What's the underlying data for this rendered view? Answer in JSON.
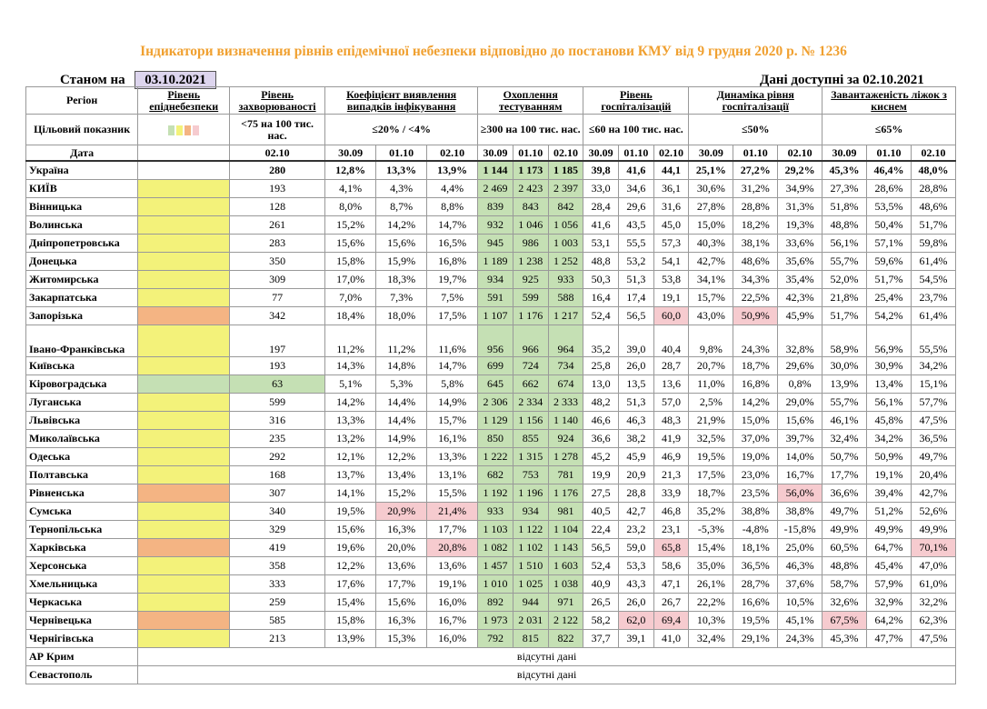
{
  "title": "Індикатори визначення рівнів епідемічної небезпеки відповідно до постанови КМУ від 9 грудня 2020 р. № 1236",
  "as_of_label": "Станом на",
  "as_of_date": "03.10.2021",
  "data_available": "Дані доступні за  02.10.2021",
  "headers": {
    "region": "Регіон",
    "danger_level": "Рівень епіднебезпеки",
    "morbidity": "Рівень захворюваності",
    "detection": "Коефіцієнт виявлення випадків інфікування",
    "testing": "Охоплення тестуванням",
    "hospitalization": "Рівень госпіталізацій",
    "dynamics": "Динаміка рівня госпіталізації",
    "beds": "Завантаженість ліжок з киснем"
  },
  "targets": {
    "label": "Цільовий показник",
    "morbidity": "<75 на 100 тис. нас.",
    "detection": "≤20% / <4%",
    "testing": "≥300 на 100 тис. нас.",
    "hospitalization": "≤60 на 100 тис. нас.",
    "dynamics": "≤50%",
    "beds": "≤65%"
  },
  "level_swatches": [
    "#c5e0b4",
    "#f3f27a",
    "#f4b483",
    "#f6cbcf"
  ],
  "date_row": {
    "label": "Дата",
    "morbidity": "02.10",
    "detection": [
      "30.09",
      "01.10",
      "02.10"
    ],
    "testing": [
      "30.09",
      "01.10",
      "02.10"
    ],
    "hospitalization": [
      "30.09",
      "01.10",
      "02.10"
    ],
    "dynamics": [
      "30.09",
      "01.10",
      "02.10"
    ],
    "beds": [
      "30.09",
      "01.10",
      "02.10"
    ]
  },
  "colors": {
    "green": "#c5e0b4",
    "yellow": "#f3f27a",
    "orange": "#f4b483",
    "red": "#f6cbcf",
    "title": "#f0a030",
    "date_box": "#ddd5ee"
  },
  "regions": [
    {
      "name": "Україна",
      "level": "none",
      "morbidity": "280",
      "detection": [
        "12,8%",
        "13,3%",
        "13,9%"
      ],
      "testing": [
        "1 144",
        "1 173",
        "1 185"
      ],
      "hospitalization": [
        "39,8",
        "41,6",
        "44,1"
      ],
      "dynamics": [
        "25,1%",
        "27,2%",
        "29,2%"
      ],
      "beds": [
        "45,3%",
        "46,4%",
        "48,0%"
      ]
    },
    {
      "name": "КИЇВ",
      "level": "yellow",
      "morbidity": "193",
      "detection": [
        "4,1%",
        "4,3%",
        "4,4%"
      ],
      "testing": [
        "2 469",
        "2 423",
        "2 397"
      ],
      "hospitalization": [
        "33,0",
        "34,6",
        "36,1"
      ],
      "dynamics": [
        "30,6%",
        "31,2%",
        "34,9%"
      ],
      "beds": [
        "27,3%",
        "28,6%",
        "28,8%"
      ]
    },
    {
      "name": "Вінницька",
      "level": "yellow",
      "morbidity": "128",
      "detection": [
        "8,0%",
        "8,7%",
        "8,8%"
      ],
      "testing": [
        "839",
        "843",
        "842"
      ],
      "hospitalization": [
        "28,4",
        "29,6",
        "31,6"
      ],
      "dynamics": [
        "27,8%",
        "28,8%",
        "31,3%"
      ],
      "beds": [
        "51,8%",
        "53,5%",
        "48,6%"
      ]
    },
    {
      "name": "Волинська",
      "level": "yellow",
      "morbidity": "261",
      "detection": [
        "15,2%",
        "14,2%",
        "14,7%"
      ],
      "testing": [
        "932",
        "1 046",
        "1 056"
      ],
      "hospitalization": [
        "41,6",
        "43,5",
        "45,0"
      ],
      "dynamics": [
        "15,0%",
        "18,2%",
        "19,3%"
      ],
      "beds": [
        "48,8%",
        "50,4%",
        "51,7%"
      ]
    },
    {
      "name": "Дніпропетровська",
      "level": "yellow",
      "morbidity": "283",
      "detection": [
        "15,6%",
        "15,6%",
        "16,5%"
      ],
      "testing": [
        "945",
        "986",
        "1 003"
      ],
      "hospitalization": [
        "53,1",
        "55,5",
        "57,3"
      ],
      "dynamics": [
        "40,3%",
        "38,1%",
        "33,6%"
      ],
      "beds": [
        "56,1%",
        "57,1%",
        "59,8%"
      ]
    },
    {
      "name": "Донецька",
      "level": "yellow",
      "morbidity": "350",
      "detection": [
        "15,8%",
        "15,9%",
        "16,8%"
      ],
      "testing": [
        "1 189",
        "1 238",
        "1 252"
      ],
      "hospitalization": [
        "48,8",
        "53,2",
        "54,1"
      ],
      "dynamics": [
        "42,7%",
        "48,6%",
        "35,6%"
      ],
      "beds": [
        "55,7%",
        "59,6%",
        "61,4%"
      ]
    },
    {
      "name": "Житомирська",
      "level": "yellow",
      "morbidity": "309",
      "detection": [
        "17,0%",
        "18,3%",
        "19,7%"
      ],
      "testing": [
        "934",
        "925",
        "933"
      ],
      "hospitalization": [
        "50,3",
        "51,3",
        "53,8"
      ],
      "dynamics": [
        "34,1%",
        "34,3%",
        "35,4%"
      ],
      "beds": [
        "52,0%",
        "51,7%",
        "54,5%"
      ]
    },
    {
      "name": "Закарпатська",
      "level": "yellow",
      "morbidity": "77",
      "detection": [
        "7,0%",
        "7,3%",
        "7,5%"
      ],
      "testing": [
        "591",
        "599",
        "588"
      ],
      "hospitalization": [
        "16,4",
        "17,4",
        "19,1"
      ],
      "dynamics": [
        "15,7%",
        "22,5%",
        "42,3%"
      ],
      "beds": [
        "21,8%",
        "25,4%",
        "23,7%"
      ]
    },
    {
      "name": "Запорізька",
      "level": "orange",
      "morbidity": "342",
      "detection": [
        "18,4%",
        "18,0%",
        "17,5%"
      ],
      "testing": [
        "1 107",
        "1 176",
        "1 217"
      ],
      "hospitalization": [
        "52,4",
        "56,5",
        "60,0"
      ],
      "dynamics": [
        "43,0%",
        "50,9%",
        "45,9%"
      ],
      "beds": [
        "51,7%",
        "54,2%",
        "61,4%"
      ]
    },
    {
      "name": "Івано-Франківська",
      "level": "yellow",
      "morbidity": "197",
      "detection": [
        "11,2%",
        "11,2%",
        "11,6%"
      ],
      "testing": [
        "956",
        "966",
        "964"
      ],
      "hospitalization": [
        "35,2",
        "39,0",
        "40,4"
      ],
      "dynamics": [
        "9,8%",
        "24,3%",
        "32,8%"
      ],
      "beds": [
        "58,9%",
        "56,9%",
        "55,5%"
      ]
    },
    {
      "name": "Київська",
      "level": "yellow",
      "morbidity": "193",
      "detection": [
        "14,3%",
        "14,8%",
        "14,7%"
      ],
      "testing": [
        "699",
        "724",
        "734"
      ],
      "hospitalization": [
        "25,8",
        "26,0",
        "28,7"
      ],
      "dynamics": [
        "20,7%",
        "18,7%",
        "29,6%"
      ],
      "beds": [
        "30,0%",
        "30,9%",
        "34,2%"
      ]
    },
    {
      "name": "Кіровоградська",
      "level": "green",
      "morbidity": "63",
      "detection": [
        "5,1%",
        "5,3%",
        "5,8%"
      ],
      "testing": [
        "645",
        "662",
        "674"
      ],
      "hospitalization": [
        "13,0",
        "13,5",
        "13,6"
      ],
      "dynamics": [
        "11,0%",
        "16,8%",
        "0,8%"
      ],
      "beds": [
        "13,9%",
        "13,4%",
        "15,1%"
      ]
    },
    {
      "name": "Луганська",
      "level": "yellow",
      "morbidity": "599",
      "detection": [
        "14,2%",
        "14,4%",
        "14,9%"
      ],
      "testing": [
        "2 306",
        "2 334",
        "2 333"
      ],
      "hospitalization": [
        "48,2",
        "51,3",
        "57,0"
      ],
      "dynamics": [
        "2,5%",
        "14,2%",
        "29,0%"
      ],
      "beds": [
        "55,7%",
        "56,1%",
        "57,7%"
      ]
    },
    {
      "name": "Львівська",
      "level": "yellow",
      "morbidity": "316",
      "detection": [
        "13,3%",
        "14,4%",
        "15,7%"
      ],
      "testing": [
        "1 129",
        "1 156",
        "1 140"
      ],
      "hospitalization": [
        "46,6",
        "46,3",
        "48,3"
      ],
      "dynamics": [
        "21,9%",
        "15,0%",
        "15,6%"
      ],
      "beds": [
        "46,1%",
        "45,8%",
        "47,5%"
      ]
    },
    {
      "name": "Миколаївська",
      "level": "yellow",
      "morbidity": "235",
      "detection": [
        "13,2%",
        "14,9%",
        "16,1%"
      ],
      "testing": [
        "850",
        "855",
        "924"
      ],
      "hospitalization": [
        "36,6",
        "38,2",
        "41,9"
      ],
      "dynamics": [
        "32,5%",
        "37,0%",
        "39,7%"
      ],
      "beds": [
        "32,4%",
        "34,2%",
        "36,5%"
      ]
    },
    {
      "name": "Одеська",
      "level": "yellow",
      "morbidity": "292",
      "detection": [
        "12,1%",
        "12,2%",
        "13,3%"
      ],
      "testing": [
        "1 222",
        "1 315",
        "1 278"
      ],
      "hospitalization": [
        "45,2",
        "45,9",
        "46,9"
      ],
      "dynamics": [
        "19,5%",
        "19,0%",
        "14,0%"
      ],
      "beds": [
        "50,7%",
        "50,9%",
        "49,7%"
      ]
    },
    {
      "name": "Полтавська",
      "level": "yellow",
      "morbidity": "168",
      "detection": [
        "13,7%",
        "13,4%",
        "13,1%"
      ],
      "testing": [
        "682",
        "753",
        "781"
      ],
      "hospitalization": [
        "19,9",
        "20,9",
        "21,3"
      ],
      "dynamics": [
        "17,5%",
        "23,0%",
        "16,7%"
      ],
      "beds": [
        "17,7%",
        "19,1%",
        "20,4%"
      ]
    },
    {
      "name": "Рівненська",
      "level": "orange",
      "morbidity": "307",
      "detection": [
        "14,1%",
        "15,2%",
        "15,5%"
      ],
      "testing": [
        "1 192",
        "1 196",
        "1 176"
      ],
      "hospitalization": [
        "27,5",
        "28,8",
        "33,9"
      ],
      "dynamics": [
        "18,7%",
        "23,5%",
        "56,0%"
      ],
      "beds": [
        "36,6%",
        "39,4%",
        "42,7%"
      ]
    },
    {
      "name": "Сумська",
      "level": "yellow",
      "morbidity": "340",
      "detection": [
        "19,5%",
        "20,9%",
        "21,4%"
      ],
      "testing": [
        "933",
        "934",
        "981"
      ],
      "hospitalization": [
        "40,5",
        "42,7",
        "46,8"
      ],
      "dynamics": [
        "35,2%",
        "38,8%",
        "38,8%"
      ],
      "beds": [
        "49,7%",
        "51,2%",
        "52,6%"
      ]
    },
    {
      "name": "Тернопільська",
      "level": "yellow",
      "morbidity": "329",
      "detection": [
        "15,6%",
        "16,3%",
        "17,7%"
      ],
      "testing": [
        "1 103",
        "1 122",
        "1 104"
      ],
      "hospitalization": [
        "22,4",
        "23,2",
        "23,1"
      ],
      "dynamics": [
        "-5,3%",
        "-4,8%",
        "-15,8%"
      ],
      "beds": [
        "49,9%",
        "49,9%",
        "49,9%"
      ]
    },
    {
      "name": "Харківська",
      "level": "orange",
      "morbidity": "419",
      "detection": [
        "19,6%",
        "20,0%",
        "20,8%"
      ],
      "testing": [
        "1 082",
        "1 102",
        "1 143"
      ],
      "hospitalization": [
        "56,5",
        "59,0",
        "65,8"
      ],
      "dynamics": [
        "15,4%",
        "18,1%",
        "25,0%"
      ],
      "beds": [
        "60,5%",
        "64,7%",
        "70,1%"
      ]
    },
    {
      "name": "Херсонська",
      "level": "yellow",
      "morbidity": "358",
      "detection": [
        "12,2%",
        "13,6%",
        "13,6%"
      ],
      "testing": [
        "1 457",
        "1 510",
        "1 603"
      ],
      "hospitalization": [
        "52,4",
        "53,3",
        "58,6"
      ],
      "dynamics": [
        "35,0%",
        "36,5%",
        "46,3%"
      ],
      "beds": [
        "48,8%",
        "45,4%",
        "47,0%"
      ]
    },
    {
      "name": "Хмельницька",
      "level": "yellow",
      "morbidity": "333",
      "detection": [
        "17,6%",
        "17,7%",
        "19,1%"
      ],
      "testing": [
        "1 010",
        "1 025",
        "1 038"
      ],
      "hospitalization": [
        "40,9",
        "43,3",
        "47,1"
      ],
      "dynamics": [
        "26,1%",
        "28,7%",
        "37,6%"
      ],
      "beds": [
        "58,7%",
        "57,9%",
        "61,0%"
      ]
    },
    {
      "name": "Черкаська",
      "level": "yellow",
      "morbidity": "259",
      "detection": [
        "15,4%",
        "15,6%",
        "16,0%"
      ],
      "testing": [
        "892",
        "944",
        "971"
      ],
      "hospitalization": [
        "26,5",
        "26,0",
        "26,7"
      ],
      "dynamics": [
        "22,2%",
        "16,6%",
        "10,5%"
      ],
      "beds": [
        "32,6%",
        "32,9%",
        "32,2%"
      ]
    },
    {
      "name": "Чернівецька",
      "level": "orange",
      "morbidity": "585",
      "detection": [
        "15,8%",
        "16,3%",
        "16,7%"
      ],
      "testing": [
        "1 973",
        "2 031",
        "2 122"
      ],
      "hospitalization": [
        "58,2",
        "62,0",
        "69,4"
      ],
      "dynamics": [
        "10,3%",
        "19,5%",
        "45,1%"
      ],
      "beds": [
        "67,5%",
        "64,2%",
        "62,3%"
      ]
    },
    {
      "name": "Чернігівська",
      "level": "yellow",
      "morbidity": "213",
      "detection": [
        "13,9%",
        "15,3%",
        "16,0%"
      ],
      "testing": [
        "792",
        "815",
        "822"
      ],
      "hospitalization": [
        "37,7",
        "39,1",
        "41,0"
      ],
      "dynamics": [
        "32,4%",
        "29,1%",
        "24,3%"
      ],
      "beds": [
        "45,3%",
        "47,7%",
        "47,5%"
      ]
    }
  ],
  "no_data_regions": [
    {
      "name": "АР Крим",
      "note": "відсутні дані"
    },
    {
      "name": "Севастополь",
      "note": "відсутні дані"
    }
  ],
  "red_highlights": {
    "Запорізька": [
      "h2",
      "d1"
    ],
    "Сумська": [
      "det1",
      "det2"
    ],
    "Рівненська": [
      "d2"
    ],
    "Харківська": [
      "det2",
      "h2",
      "b2"
    ],
    "Чернівецька": [
      "h1",
      "h2",
      "b0"
    ]
  }
}
